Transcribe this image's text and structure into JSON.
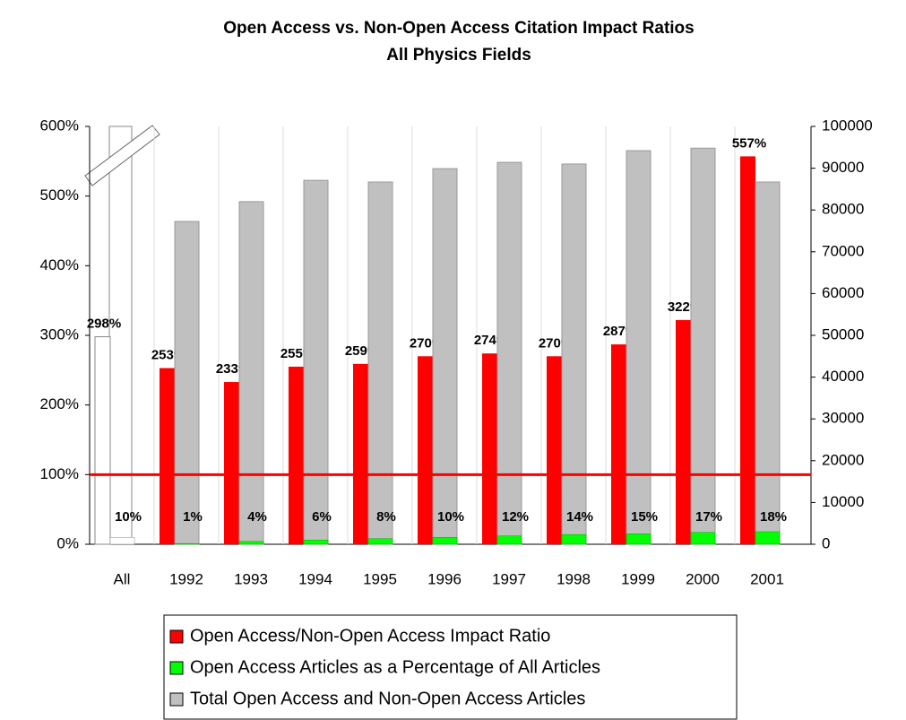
{
  "chart_data": {
    "type": "bar",
    "title": "Open Access vs. Non-Open Access Citation Impact Ratios",
    "subtitle": "All Physics Fields",
    "categories": [
      "All",
      "1992",
      "1993",
      "1994",
      "1995",
      "1996",
      "1997",
      "1998",
      "1999",
      "2000",
      "2001"
    ],
    "series": [
      {
        "name": "Open Access/Non-Open Access Impact Ratio",
        "color": "#ff0000",
        "first_color": "#ffffff",
        "values": [
          298,
          253,
          233,
          255,
          259,
          270,
          274,
          270,
          287,
          322,
          557
        ],
        "value_labels": [
          "298%",
          "253%",
          "233%",
          "255%",
          "259%",
          "270%",
          "274%",
          "270%",
          "287%",
          "322%",
          "557%"
        ]
      },
      {
        "name": "Open Access Articles as a Percentage of All Articles",
        "color": "#00ff00",
        "first_color": "#ffffff",
        "values": [
          10,
          1,
          4,
          6,
          8,
          10,
          12,
          14,
          15,
          17,
          18
        ],
        "value_labels": [
          "10%",
          "1%",
          "4%",
          "6%",
          "8%",
          "10%",
          "12%",
          "14%",
          "15%",
          "17%",
          "18%"
        ]
      },
      {
        "name": "Total Open Access and Non-Open Access Articles",
        "color": "#c0c0c0",
        "axis": "y2",
        "values": [
          null,
          77250,
          82000,
          87100,
          86700,
          89900,
          91400,
          91000,
          94200,
          94800,
          86700
        ]
      }
    ],
    "ylim": [
      0,
      600
    ],
    "yticks": [
      {
        "value": 0,
        "label": "0%"
      },
      {
        "value": 100,
        "label": "100%"
      },
      {
        "value": 200,
        "label": "200%"
      },
      {
        "value": 300,
        "label": "300%"
      },
      {
        "value": 400,
        "label": "400%"
      },
      {
        "value": 500,
        "label": "500%"
      },
      {
        "value": 600,
        "label": "600%"
      }
    ],
    "y2lim": [
      0,
      100000
    ],
    "y2ticks": [
      0,
      10000,
      20000,
      30000,
      40000,
      50000,
      60000,
      70000,
      80000,
      90000,
      100000
    ],
    "reference_line": 100,
    "reference_color": "#ff0000",
    "legend": "bottom"
  }
}
